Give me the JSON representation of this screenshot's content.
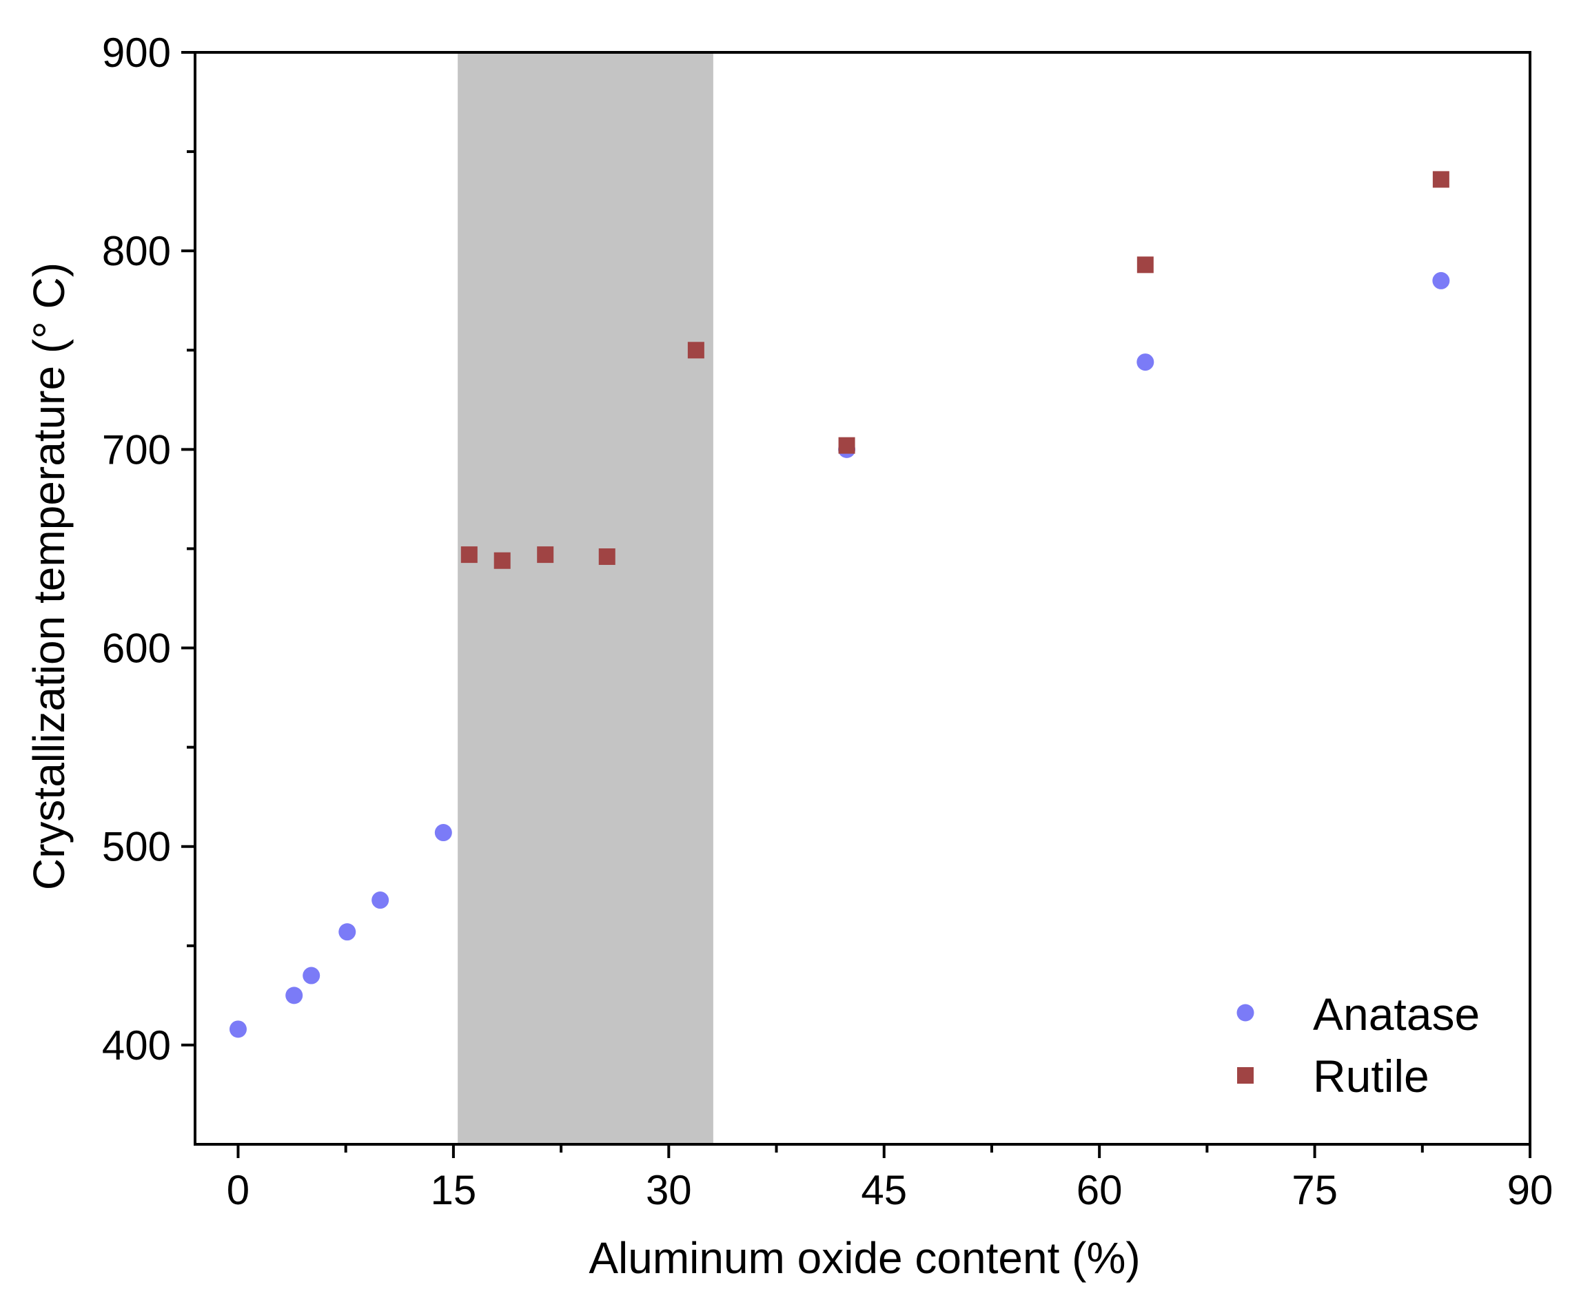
{
  "chart_data": {
    "type": "scatter",
    "xlabel": "Aluminum oxide content (%)",
    "ylabel": "Crystallization temperature (° C)",
    "xlim": [
      -3,
      90
    ],
    "ylim": [
      350,
      900
    ],
    "x_ticks": [
      0,
      15,
      30,
      45,
      60,
      75,
      90
    ],
    "x_minor_ticks": [
      7.5,
      22.5,
      37.5,
      52.5,
      67.5,
      82.5
    ],
    "y_ticks": [
      400,
      500,
      600,
      700,
      800,
      900
    ],
    "y_minor_ticks": [
      450,
      550,
      650,
      750,
      850
    ],
    "shaded_region": {
      "x_start": 15.3,
      "x_end": 33.1,
      "color": "#c4c4c4"
    },
    "legend_position": "bottom-right",
    "series": [
      {
        "name": "Anatase",
        "marker": "circle",
        "color": "#7b7bf7",
        "points": [
          {
            "x": 0,
            "y": 408
          },
          {
            "x": 3.9,
            "y": 425
          },
          {
            "x": 5.1,
            "y": 435
          },
          {
            "x": 7.6,
            "y": 457
          },
          {
            "x": 9.9,
            "y": 473
          },
          {
            "x": 14.3,
            "y": 507
          },
          {
            "x": 42.4,
            "y": 700
          },
          {
            "x": 63.2,
            "y": 744
          },
          {
            "x": 83.8,
            "y": 785
          }
        ]
      },
      {
        "name": "Rutile",
        "marker": "square",
        "color": "#a04444",
        "points": [
          {
            "x": 16.1,
            "y": 647
          },
          {
            "x": 18.4,
            "y": 644
          },
          {
            "x": 21.4,
            "y": 647
          },
          {
            "x": 25.7,
            "y": 646
          },
          {
            "x": 31.9,
            "y": 750
          },
          {
            "x": 42.4,
            "y": 702
          },
          {
            "x": 63.2,
            "y": 793
          },
          {
            "x": 83.8,
            "y": 836
          }
        ]
      }
    ]
  }
}
